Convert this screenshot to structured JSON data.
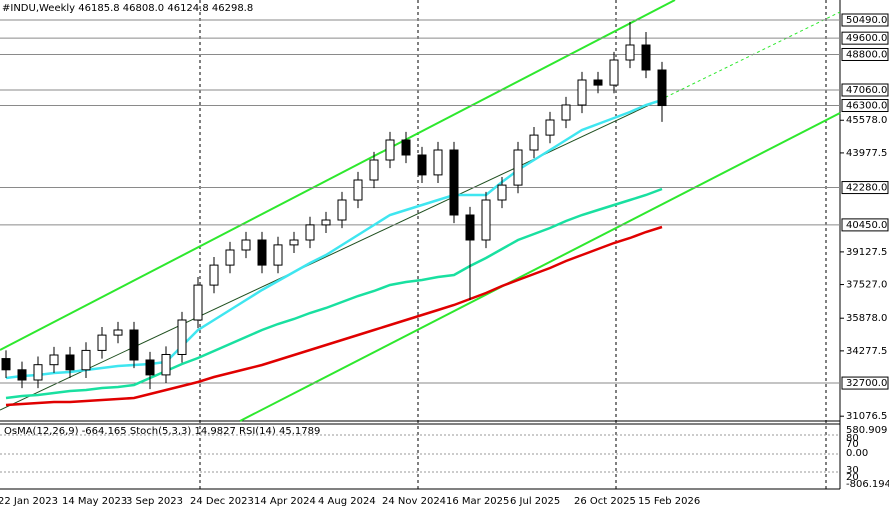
{
  "chart_data": {
    "type": "candlestick",
    "title": "#INDU,Weekly  46185.8 46808.0 46124.8 46298.8",
    "categories": [
      "22 Jan 2023",
      null,
      null,
      null,
      "14 May 2023",
      null,
      null,
      null,
      "3 Sep 2023",
      null,
      null,
      null,
      "24 Dec 2023",
      null,
      null,
      null,
      "14 Apr 2024",
      null,
      null,
      null,
      "4 Aug 2024",
      null,
      null,
      null,
      "24 Nov 2024",
      null,
      null,
      null,
      "16 Mar 2025",
      null,
      null,
      null,
      "6 Jul 2025",
      null,
      null,
      null,
      "26 Oct 2025",
      null,
      null,
      null,
      "15 Feb 2026",
      null
    ],
    "ylim": [
      30890,
      51470
    ],
    "yticks": [
      {
        "value": 45578,
        "label": "45578.0"
      },
      {
        "value": 43977.5,
        "label": "43977.5"
      },
      {
        "value": 39127.5,
        "label": "39127.5"
      },
      {
        "value": 37527,
        "label": "37527.0"
      },
      {
        "value": 35878,
        "label": "35878.0"
      },
      {
        "value": 34277.5,
        "label": "34277.5"
      },
      {
        "value": 31076.5,
        "label": "31076.5"
      }
    ],
    "levels": [
      {
        "value": 50490,
        "label": "50490.0"
      },
      {
        "value": 49600,
        "label": "49600.0"
      },
      {
        "value": 48800,
        "label": "48800.0"
      },
      {
        "value": 47060,
        "label": "47060.0"
      },
      {
        "value": 46300,
        "label": "46300.0"
      },
      {
        "value": 42280,
        "label": "42280.0"
      },
      {
        "value": 40450,
        "label": "40450.0"
      },
      {
        "value": 32700,
        "label": "32700.0"
      }
    ],
    "candles": {
      "up_color": "#ffffff",
      "down_color": "#000000",
      "open": [
        33900,
        33350,
        32850,
        33600,
        34075,
        33350,
        34300,
        35050,
        35300,
        33830,
        33100,
        34100,
        35790,
        37500,
        38480,
        39220,
        39710,
        38480,
        39470,
        39710,
        40450,
        40690,
        41670,
        42650,
        43630,
        44610,
        43875,
        42900,
        44120,
        40935,
        39710,
        41670,
        42400,
        44120,
        44850,
        45590,
        46325,
        47550,
        47300,
        48530,
        49265,
        48040
      ],
      "high": [
        34300,
        33750,
        34000,
        34475,
        34475,
        34700,
        35450,
        35700,
        35700,
        34230,
        34500,
        36190,
        37900,
        38880,
        39620,
        40110,
        40110,
        39870,
        40110,
        40850,
        41090,
        42070,
        43050,
        44030,
        45010,
        45010,
        44275,
        44520,
        44520,
        41335,
        42070,
        42800,
        44520,
        45250,
        45990,
        46725,
        47950,
        47950,
        48930,
        50400,
        49900,
        48440
      ],
      "low": [
        32950,
        32450,
        32450,
        33200,
        32950,
        32950,
        33900,
        34650,
        33430,
        32400,
        32700,
        33700,
        35390,
        37100,
        38080,
        38820,
        38080,
        38080,
        39070,
        39310,
        40050,
        40290,
        41270,
        42250,
        43230,
        43475,
        42500,
        42500,
        40535,
        36770,
        39310,
        41270,
        42000,
        43720,
        44450,
        45190,
        45925,
        46900,
        46900,
        48130,
        47640,
        45500
      ],
      "close": [
        33350,
        32850,
        33600,
        34075,
        33350,
        34300,
        35050,
        35300,
        33830,
        33100,
        34100,
        35790,
        37500,
        38480,
        39220,
        39710,
        38480,
        39470,
        39710,
        40450,
        40690,
        41670,
        42650,
        43630,
        44610,
        43875,
        42900,
        44120,
        40935,
        39710,
        41670,
        42400,
        44120,
        44850,
        45590,
        46325,
        47550,
        47300,
        48530,
        49265,
        48040,
        46298.8
      ]
    },
    "series": [
      {
        "color": "#3fe6f0",
        "values": [
          32948,
          33046,
          33095,
          33193,
          33242,
          33340,
          33438,
          33536,
          33585,
          33634,
          33732,
          34516,
          35300,
          35790,
          36280,
          36770,
          37260,
          37701,
          38142,
          38583,
          38975,
          39465,
          39955,
          40445,
          40935,
          41180,
          41425,
          41670,
          41915,
          41915,
          41915,
          42552,
          43140,
          43630,
          44120,
          44610,
          45100,
          45394,
          45688,
          45982,
          46325,
          46570
        ]
      },
      {
        "color": "#19e0a0",
        "values": [
          31968,
          32066,
          32115,
          32213,
          32311,
          32360,
          32458,
          32507,
          32605,
          32948,
          33291,
          33634,
          33928,
          34271,
          34614,
          34957,
          35300,
          35594,
          35839,
          36133,
          36378,
          36672,
          36966,
          37211,
          37505,
          37652,
          37750,
          37897,
          37995,
          38436,
          38828,
          39269,
          39710,
          40004,
          40298,
          40641,
          40935,
          41180,
          41425,
          41670,
          41915,
          42209
        ]
      },
      {
        "color": "#e00000",
        "values": [
          31625,
          31674,
          31723,
          31772,
          31772,
          31821,
          31870,
          31919,
          31968,
          32164,
          32360,
          32556,
          32752,
          32997,
          33193,
          33389,
          33585,
          33830,
          34075,
          34320,
          34565,
          34810,
          35055,
          35300,
          35545,
          35790,
          36035,
          36280,
          36525,
          36819,
          37113,
          37456,
          37750,
          38044,
          38338,
          38681,
          38975,
          39269,
          39563,
          39808,
          40102,
          40347
        ]
      }
    ],
    "indicator": {
      "title": "OsMA(12,26,9) -664.165  Stoch(5,3,3) 14.9827  RSI(14) 45.1789",
      "labels": [
        "580.909",
        "80",
        "70",
        "0.00",
        "30",
        "20",
        "-806.194"
      ]
    }
  }
}
